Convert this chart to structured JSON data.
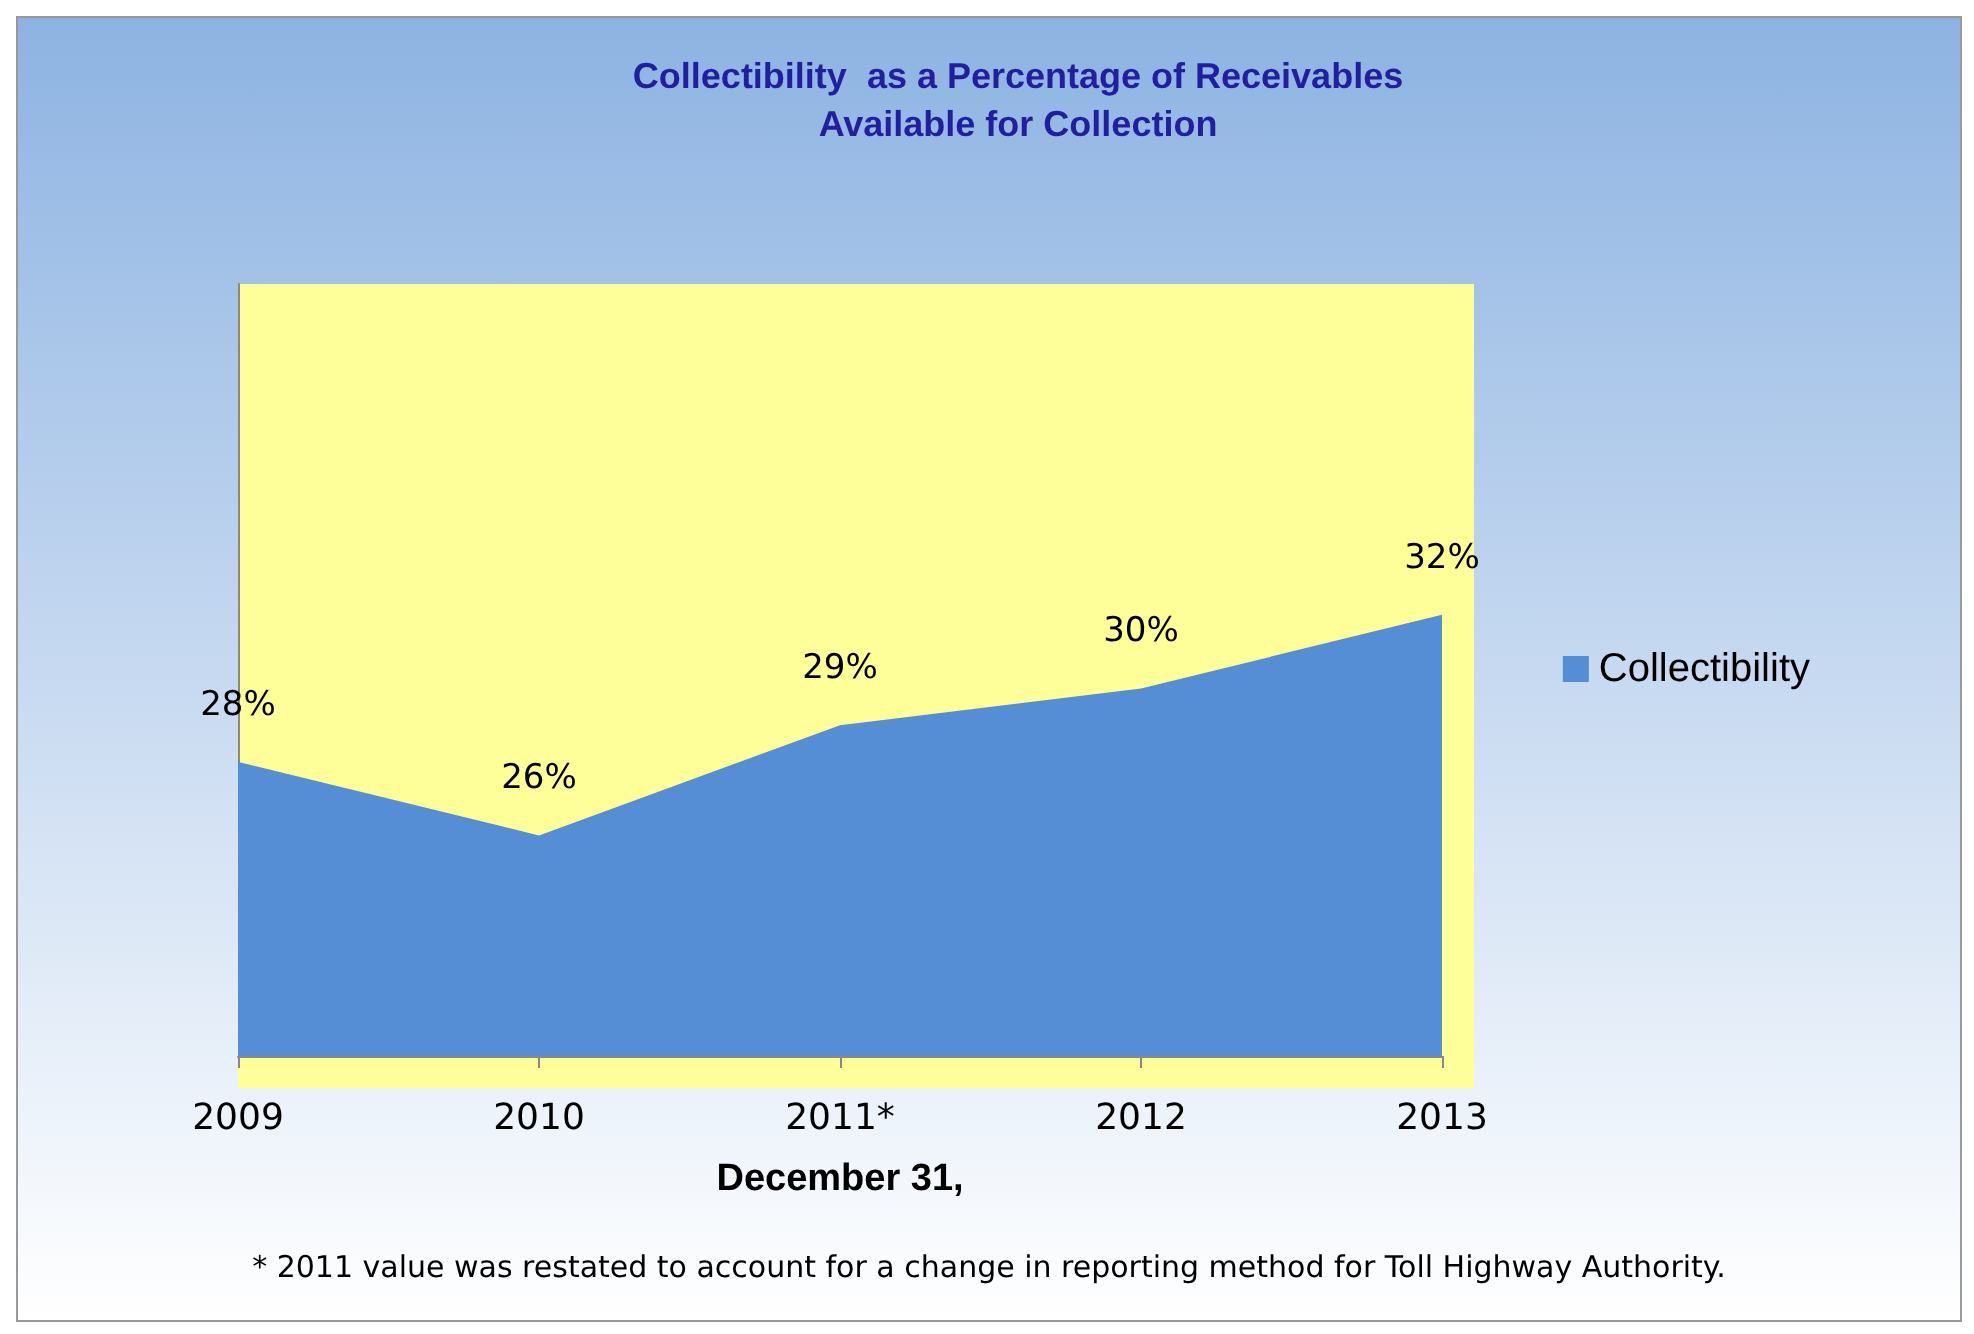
{
  "chart_data": {
    "type": "area",
    "title": "Collectibility  as a Percentage of Receivables\nAvailable for Collection",
    "xlabel": "December 31,",
    "categories": [
      "2009",
      "2010",
      "2011*",
      "2012",
      "2013"
    ],
    "series": [
      {
        "name": "Collectibility",
        "color": "#558ed5",
        "values": [
          28,
          26,
          29,
          30,
          32
        ],
        "value_labels": [
          "28%",
          "26%",
          "29%",
          "30%",
          "32%"
        ]
      }
    ],
    "ylim": [
      20,
      41
    ],
    "grid": false,
    "legend": "right",
    "annotations": [
      "* 2011 value was restated to account for a change in reporting method for Toll Highway Authority."
    ]
  }
}
